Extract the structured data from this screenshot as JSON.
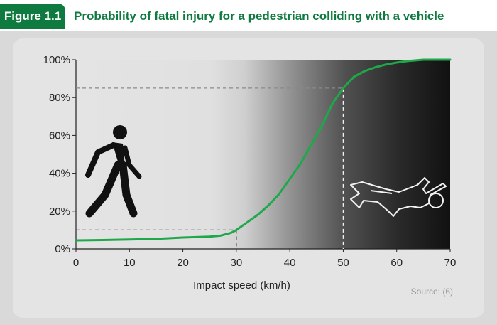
{
  "header": {
    "badge": "Figure 1.1",
    "title": "Probability of fatal injury for a pedestrian colliding with a vehicle"
  },
  "source": "Source: (6)",
  "colors": {
    "accent": "#0f7a3f",
    "curve": "#1fa84a",
    "panel": "#d9d9d9",
    "card": "#e4e4e4",
    "dark": "#111111"
  },
  "icons": {
    "left": "walking-pedestrian-icon",
    "right": "body-outline-icon"
  },
  "chart_data": {
    "type": "line",
    "title": "Probability of fatal injury for a pedestrian colliding with a vehicle",
    "xlabel": "Impact speed (km/h)",
    "ylabel": "",
    "xlim": [
      0,
      70
    ],
    "ylim": [
      0,
      100
    ],
    "x_ticks": [
      0,
      10,
      20,
      30,
      40,
      50,
      60,
      70
    ],
    "y_ticks": [
      0,
      20,
      40,
      60,
      80,
      100
    ],
    "y_tick_labels": [
      "0%",
      "20%",
      "40%",
      "60%",
      "80%",
      "100%"
    ],
    "series": [
      {
        "x": [
          0,
          5,
          10,
          15,
          20,
          25,
          27,
          29,
          30,
          32,
          34,
          36,
          38,
          40,
          42,
          44,
          46,
          48,
          50,
          52,
          54,
          56,
          58,
          60,
          62,
          65,
          70
        ],
        "y": [
          4.5,
          4.7,
          5,
          5.3,
          6,
          6.5,
          7,
          8.5,
          10,
          14,
          18,
          23,
          29,
          37,
          45,
          55,
          65,
          77,
          85,
          91,
          94,
          96,
          97.5,
          98.5,
          99.3,
          100,
          100
        ]
      }
    ],
    "reference_lines": [
      {
        "x": 30,
        "y": 10
      },
      {
        "x": 50,
        "y": 85
      }
    ],
    "grid": false,
    "legend": "none"
  }
}
